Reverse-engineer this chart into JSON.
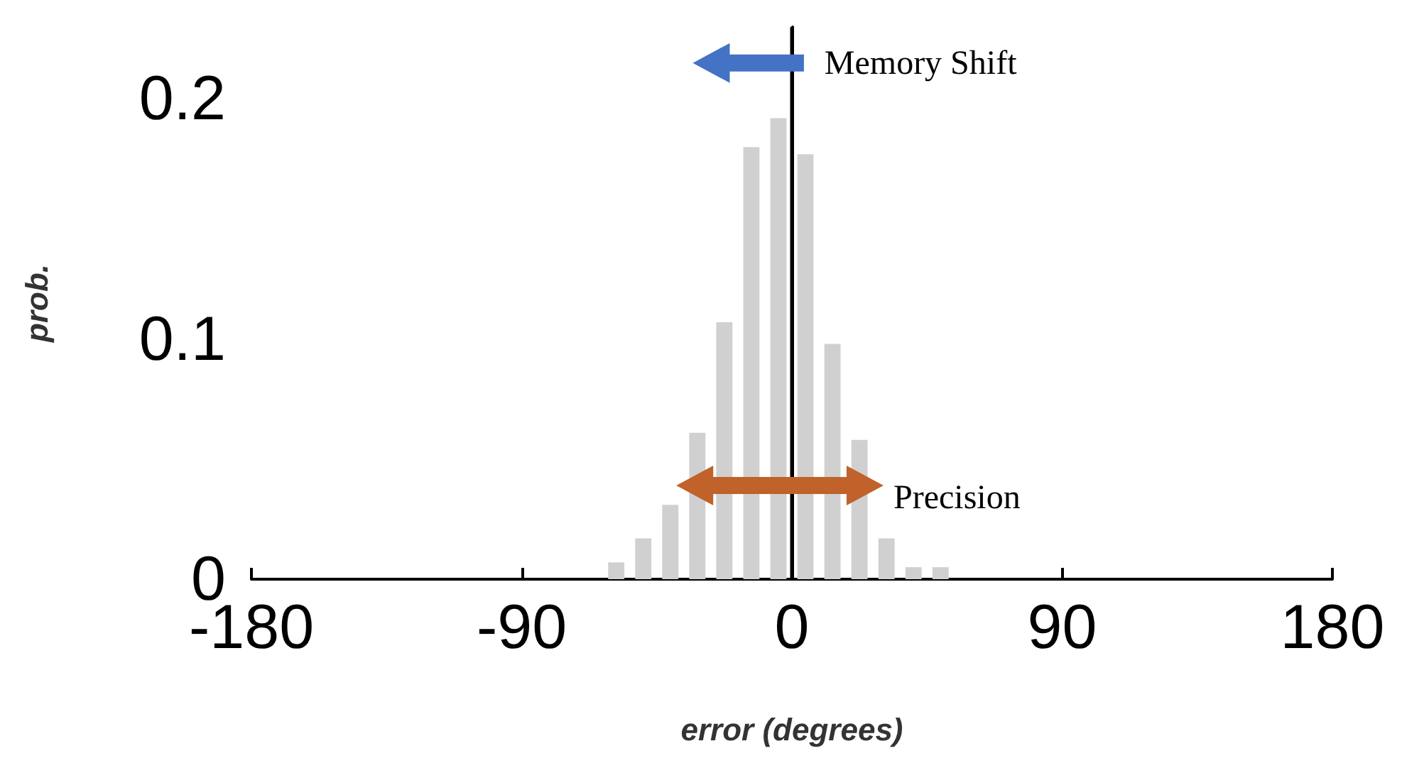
{
  "chart_data": {
    "type": "histogram",
    "xlabel": "error (degrees)",
    "ylabel": "prob.",
    "bins": [
      -63,
      -54,
      -45,
      -36,
      -27,
      -18,
      -9,
      0,
      9,
      18,
      27,
      36,
      45,
      54
    ],
    "values": [
      0.007,
      0.017,
      0.031,
      0.061,
      0.107,
      0.18,
      0.192,
      0.177,
      0.098,
      0.058,
      0.017,
      0.005,
      0.005
    ],
    "color": "#d0d0d0",
    "xlim": [
      -180,
      180
    ],
    "xticks": [
      -180,
      -90,
      0,
      90,
      180
    ],
    "ylim": [
      0,
      0.23
    ],
    "yticks": [
      0,
      0.1,
      0.2
    ],
    "ref_lines": [
      {
        "axis": "x",
        "value": 0,
        "color": "#000000"
      }
    ],
    "annotations": [
      "Memory Shift",
      "Precision"
    ],
    "grid": false,
    "legend": false
  }
}
